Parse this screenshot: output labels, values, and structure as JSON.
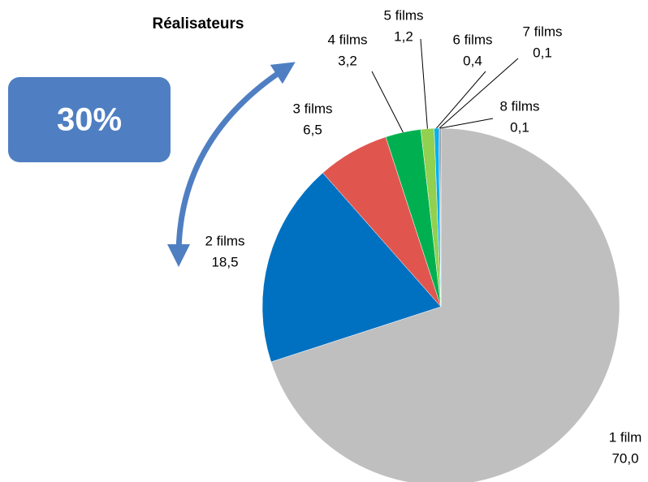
{
  "chart_data": {
    "type": "pie",
    "title": "Réalisateurs",
    "annotation": "30%",
    "categories": [
      "1 film",
      "2 films",
      "3 films",
      "4 films",
      "5 films",
      "6 films",
      "7 films",
      "8 films"
    ],
    "values": [
      70.0,
      18.5,
      6.5,
      3.2,
      1.2,
      0.4,
      0.1,
      0.1
    ],
    "value_labels": [
      "70,0",
      "18,5",
      "6,5",
      "3,2",
      "1,2",
      "0,4",
      "0,1",
      "0,1"
    ],
    "colors": [
      "#bfbfbf",
      "#0070c0",
      "#e0564f",
      "#00b050",
      "#92d050",
      "#00b0f0",
      "#0070c0",
      "#7f7f7f"
    ]
  }
}
